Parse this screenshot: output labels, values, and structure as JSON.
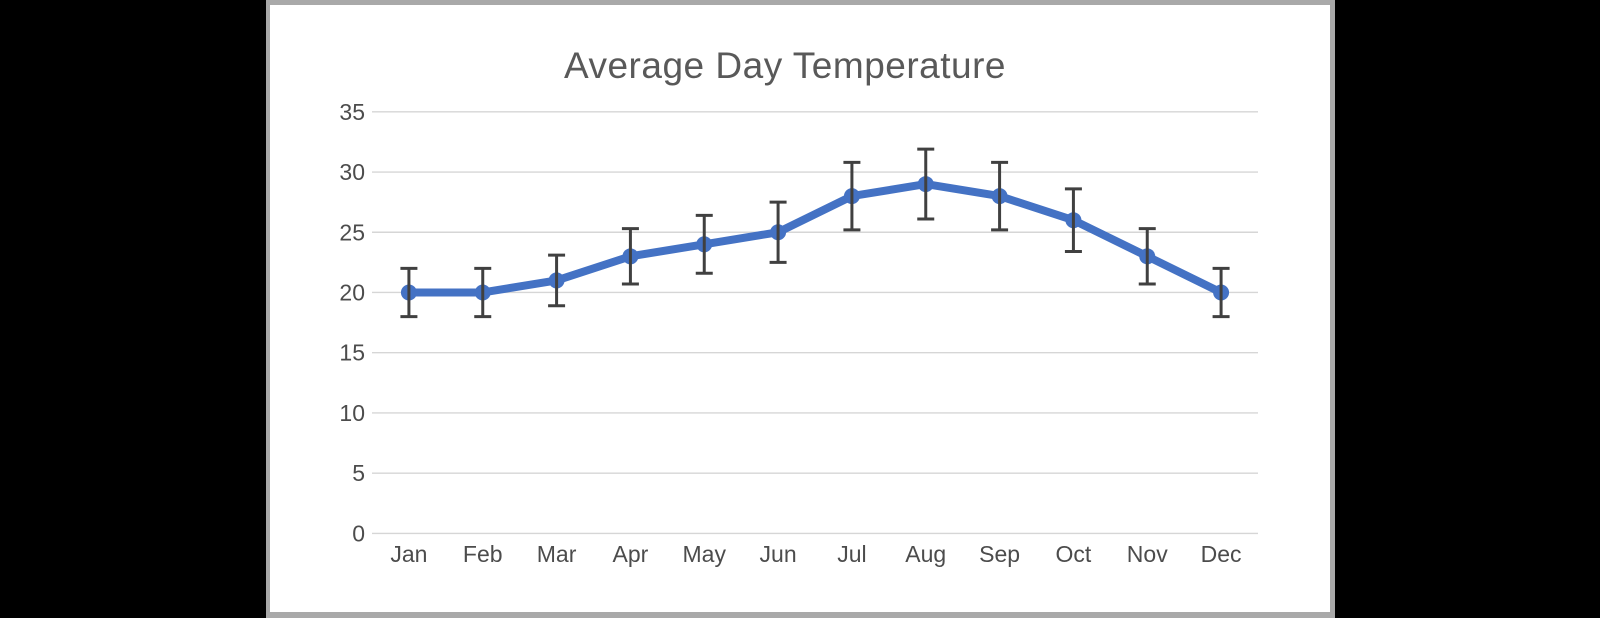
{
  "window": {
    "background_color": "#000000",
    "frame_color": "#a9a9a9",
    "body_color": "#ffffff"
  },
  "chart": {
    "title": "Average Day Temperature",
    "title_color": "#595959"
  },
  "chart_data": {
    "type": "line",
    "title": "Average Day Temperature",
    "categories": [
      "Jan",
      "Feb",
      "Mar",
      "Apr",
      "May",
      "Jun",
      "Jul",
      "Aug",
      "Sep",
      "Oct",
      "Nov",
      "Dec"
    ],
    "series": [
      {
        "name": "Average Day Temperature",
        "values": [
          20,
          20,
          21,
          23,
          24,
          25,
          28,
          29,
          28,
          26,
          23,
          20
        ],
        "error_plus": [
          2.0,
          2.0,
          2.1,
          2.3,
          2.4,
          2.5,
          2.8,
          2.9,
          2.8,
          2.6,
          2.3,
          2.0
        ],
        "error_minus": [
          2.0,
          2.0,
          2.1,
          2.3,
          2.4,
          2.5,
          2.8,
          2.9,
          2.8,
          2.6,
          2.3,
          2.0
        ],
        "color": "#4472c4",
        "marker": "circle",
        "error_bar_color": "#404040"
      }
    ],
    "xlabel": "",
    "ylabel": "",
    "ylim": [
      0,
      35
    ],
    "y_ticks": [
      0,
      5,
      10,
      15,
      20,
      25,
      30,
      35
    ],
    "grid": true,
    "gridline_color": "#d6d6d6",
    "axis_label_color": "#4c4c4c",
    "legend": "none"
  }
}
